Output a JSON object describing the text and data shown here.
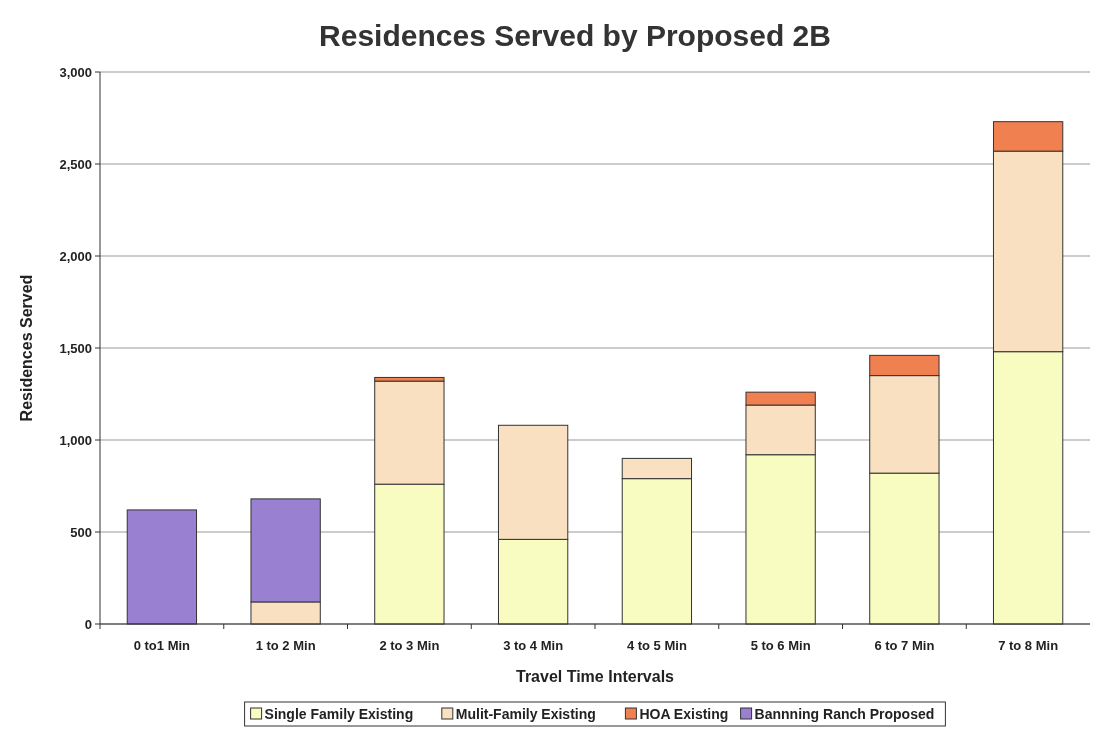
{
  "chart_data": {
    "type": "bar",
    "stacked": true,
    "title": "Residences Served by Proposed 2B",
    "xlabel": "Travel Time Intervals",
    "ylabel": "Residences Served",
    "categories": [
      "0 to1 Min",
      "1 to 2 Min",
      "2 to 3 Min",
      "3 to 4 Min",
      "4 to 5 Min",
      "5 to 6 Min",
      "6 to 7 Min",
      "7 to 8 Min"
    ],
    "series": [
      {
        "name": "Single Family Existing",
        "color": "#f8fcc0",
        "values": [
          null,
          null,
          760,
          460,
          790,
          920,
          820,
          1480
        ]
      },
      {
        "name": "Mulit-Family Existing",
        "color": "#f8e0c0",
        "values": [
          null,
          120,
          560,
          620,
          110,
          270,
          530,
          1090
        ]
      },
      {
        "name": "HOA Existing",
        "color": "#f08050",
        "values": [
          null,
          null,
          20,
          null,
          null,
          70,
          110,
          160
        ]
      },
      {
        "name": "Bannning Ranch Proposed",
        "color": "#9980d0",
        "values": [
          620,
          560,
          null,
          null,
          null,
          null,
          null,
          null
        ]
      }
    ],
    "ylim": [
      0,
      3000
    ],
    "yticks": [
      0,
      {
        "value": 500,
        "label": "500"
      },
      {
        "value": 1000,
        "label": "1,000"
      },
      {
        "value": 1500,
        "label": "1,500"
      },
      {
        "value": 2000,
        "label": "2,000"
      },
      {
        "value": 2500,
        "label": "2,500"
      },
      {
        "value": 3000,
        "label": "3,000"
      }
    ],
    "grid": "y",
    "legend": "bottom"
  }
}
